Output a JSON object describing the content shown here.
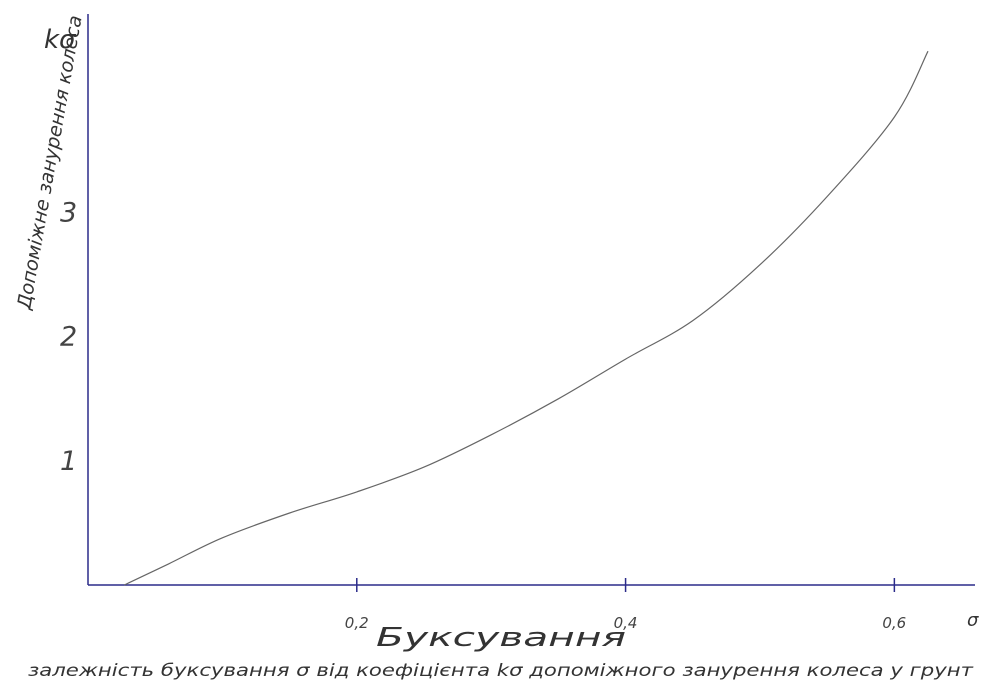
{
  "chart_data": {
    "type": "line",
    "title": "",
    "xlabel": "σ",
    "ylabel": "Допоміжне занурення колеса",
    "ylabel_symbol": "kσ",
    "x_title_below": "Буксування",
    "caption": "залежність буксування σ від коефіцієнта kσ  допоміжного занурення колеса у грунт",
    "x_ticks": [
      {
        "value": 0.2,
        "label": "0,2"
      },
      {
        "value": 0.4,
        "label": "0,4"
      },
      {
        "value": 0.6,
        "label": "0,6"
      }
    ],
    "y_ticks": [
      {
        "value": 1,
        "label": "1"
      },
      {
        "value": 2,
        "label": "2"
      },
      {
        "value": 3,
        "label": "3"
      }
    ],
    "xlim": [
      0.0,
      0.66
    ],
    "ylim": [
      0.0,
      4.6
    ],
    "grid": false,
    "colors": {
      "axis": "#2b2b8a",
      "curve": "#666666"
    },
    "series": [
      {
        "x": [
          0.027,
          0.06,
          0.1,
          0.15,
          0.2,
          0.25,
          0.3,
          0.35,
          0.4,
          0.45,
          0.5,
          0.55,
          0.6,
          0.625
        ],
        "y": [
          0.0,
          0.17,
          0.38,
          0.58,
          0.75,
          0.95,
          1.21,
          1.5,
          1.82,
          2.13,
          2.58,
          3.13,
          3.77,
          4.3
        ]
      }
    ]
  }
}
